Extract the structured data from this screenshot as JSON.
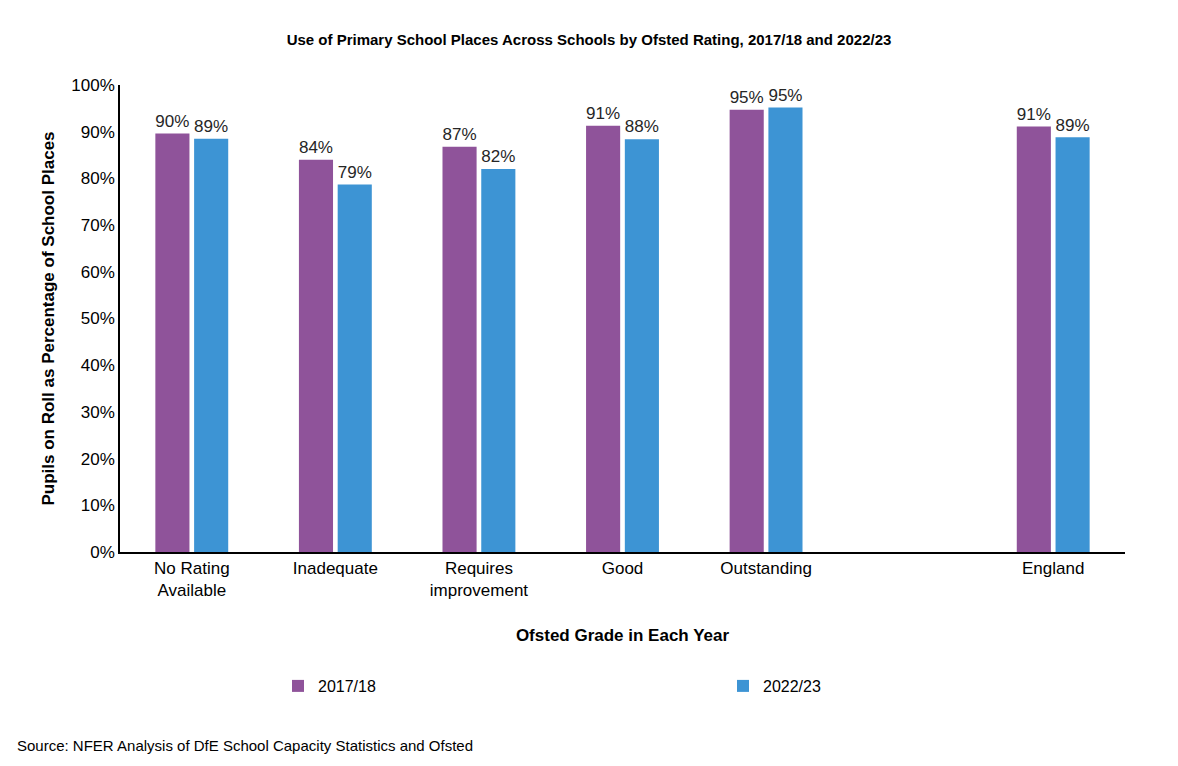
{
  "chart_data": {
    "type": "bar",
    "title": "Use of Primary School Places Across Schools by Ofsted Rating, 2017/18 and 2022/23",
    "x_label": "Ofsted Grade in Each Year",
    "y_label": "Pupils on Roll as Percentage of School Places",
    "source": "Source: NFER Analysis of DfE School Capacity Statistics and Ofsted",
    "categories": [
      "No Rating Available",
      "Inadequate",
      "Requires improvement",
      "Good",
      "Outstanding",
      null,
      "England"
    ],
    "series": [
      {
        "name": "2017/18",
        "color": "#8f539a",
        "values": [
          89.6,
          84.0,
          86.8,
          91.3,
          94.7,
          null,
          91.1
        ],
        "value_labels": [
          "90%",
          "84%",
          "87%",
          "91%",
          "95%",
          null,
          "91%"
        ]
      },
      {
        "name": "2022/23",
        "color": "#3d94d4",
        "values": [
          88.5,
          78.7,
          82.0,
          88.4,
          95.2,
          null,
          88.8
        ],
        "value_labels": [
          "89%",
          "79%",
          "82%",
          "88%",
          "95%",
          null,
          "89%"
        ]
      }
    ],
    "ylim": [
      0,
      100
    ],
    "yticks": [
      {
        "value": 0,
        "label": "0%"
      },
      {
        "value": 10,
        "label": "10%"
      },
      {
        "value": 20,
        "label": "20%"
      },
      {
        "value": 30,
        "label": "30%"
      },
      {
        "value": 40,
        "label": "40%"
      },
      {
        "value": 50,
        "label": "50%"
      },
      {
        "value": 60,
        "label": "60%"
      },
      {
        "value": 70,
        "label": "70%"
      },
      {
        "value": 80,
        "label": "80%"
      },
      {
        "value": 90,
        "label": "90%"
      },
      {
        "value": 100,
        "label": "100%"
      }
    ],
    "grid": false,
    "legend": "bottom",
    "data_labels": true
  }
}
